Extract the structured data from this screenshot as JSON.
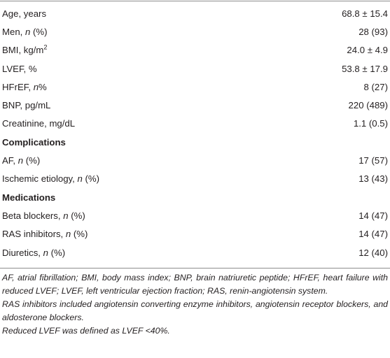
{
  "rows": [
    {
      "type": "row",
      "label_pre": "Age, years",
      "label_ital": "",
      "label_post": "",
      "value": "68.8 ± 15.4"
    },
    {
      "type": "row",
      "label_pre": "Men, ",
      "label_ital": "n",
      "label_post": " (%)",
      "value": "28 (93)"
    },
    {
      "type": "row",
      "label_pre": "BMI, kg/m",
      "label_sup": "2",
      "label_ital": "",
      "label_post": "",
      "value": "24.0 ± 4.9"
    },
    {
      "type": "row",
      "label_pre": "LVEF, %",
      "label_ital": "",
      "label_post": "",
      "value": "53.8 ± 17.9"
    },
    {
      "type": "row",
      "label_pre": "HFrEF, ",
      "label_ital": "n",
      "label_post": "%",
      "value": "8 (27)"
    },
    {
      "type": "row",
      "label_pre": "BNP, pg/mL",
      "label_ital": "",
      "label_post": "",
      "value": "220 (489)"
    },
    {
      "type": "row",
      "label_pre": "Creatinine, mg/dL",
      "label_ital": "",
      "label_post": "",
      "value": "1.1 (0.5)"
    },
    {
      "type": "section",
      "label_pre": "Complications",
      "label_ital": "",
      "label_post": "",
      "value": ""
    },
    {
      "type": "row",
      "label_pre": "AF, ",
      "label_ital": "n",
      "label_post": " (%)",
      "value": "17 (57)"
    },
    {
      "type": "row",
      "label_pre": "Ischemic etiology, ",
      "label_ital": "n",
      "label_post": " (%)",
      "value": "13 (43)"
    },
    {
      "type": "section",
      "label_pre": "Medications",
      "label_ital": "",
      "label_post": "",
      "value": ""
    },
    {
      "type": "row",
      "label_pre": "Beta blockers, ",
      "label_ital": "n",
      "label_post": " (%)",
      "value": "14 (47)"
    },
    {
      "type": "row",
      "label_pre": "RAS inhibitors, ",
      "label_ital": "n",
      "label_post": " (%)",
      "value": "14 (47)"
    },
    {
      "type": "row",
      "label_pre": "Diuretics, ",
      "label_ital": "n",
      "label_post": " (%)",
      "value": "12 (40)"
    }
  ],
  "footnotes": [
    "AF, atrial fibrillation; BMI, body mass index; BNP, brain natriuretic peptide; HFrEF, heart failure with reduced LVEF; LVEF, left ventricular ejection fraction; RAS, renin-angiotensin system.",
    "RAS inhibitors included angiotensin converting enzyme inhibitors, angiotensin receptor blockers, and aldosterone blockers.",
    "Reduced LVEF was defined as LVEF <40%."
  ]
}
